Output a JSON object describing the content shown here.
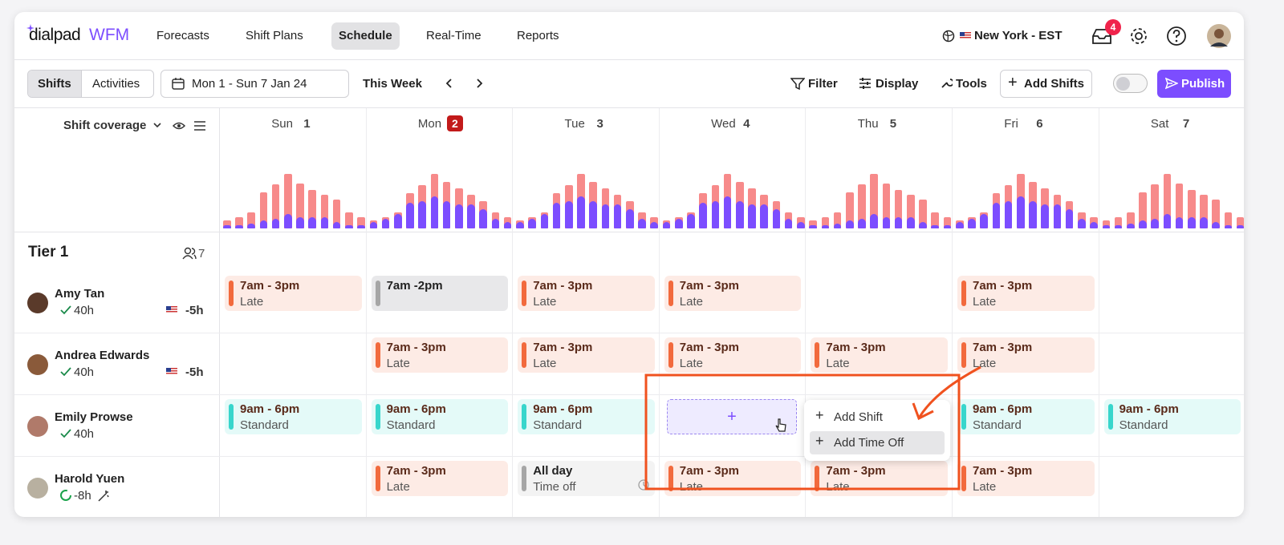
{
  "nav": {
    "brand": "dialpad",
    "product": "WFM",
    "links": [
      "Forecasts",
      "Shift Plans",
      "Schedule",
      "Real-Time",
      "Reports"
    ],
    "active": "Schedule",
    "location": "New York - EST",
    "inbox_count": 4
  },
  "toolbar": {
    "tabs": [
      "Shifts",
      "Activities"
    ],
    "date_range": "Mon 1 - Sun 7 Jan 24",
    "this_week": "This Week",
    "actions": [
      "Filter",
      "Display",
      "Tools"
    ],
    "add_button": "Add Shifts",
    "publish": "Publish"
  },
  "coverage": {
    "label": "Shift coverage",
    "days": [
      {
        "name": "Sun",
        "date": 1,
        "required": [
          10,
          14,
          20,
          45,
          55,
          68,
          56,
          48,
          42,
          36,
          20,
          14
        ],
        "scheduled": [
          4,
          4,
          6,
          10,
          12,
          18,
          14,
          14,
          14,
          8,
          4,
          4
        ]
      },
      {
        "name": "Mon",
        "date": 2,
        "today": true,
        "required": [
          10,
          14,
          20,
          44,
          54,
          68,
          58,
          50,
          42,
          34,
          20,
          14
        ],
        "scheduled": [
          8,
          12,
          18,
          32,
          34,
          40,
          34,
          30,
          30,
          24,
          12,
          8
        ]
      },
      {
        "name": "Tue",
        "date": 3,
        "required": [
          10,
          14,
          20,
          44,
          54,
          68,
          58,
          50,
          42,
          34,
          20,
          14
        ],
        "scheduled": [
          8,
          12,
          18,
          32,
          34,
          40,
          34,
          30,
          30,
          24,
          12,
          8
        ]
      },
      {
        "name": "Wed",
        "date": 4,
        "required": [
          10,
          14,
          20,
          44,
          54,
          68,
          58,
          50,
          42,
          34,
          20,
          14
        ],
        "scheduled": [
          8,
          12,
          18,
          32,
          34,
          40,
          34,
          30,
          30,
          24,
          12,
          8
        ]
      },
      {
        "name": "Thu",
        "date": 5,
        "required": [
          10,
          14,
          20,
          45,
          55,
          68,
          56,
          48,
          42,
          36,
          20,
          14
        ],
        "scheduled": [
          4,
          4,
          6,
          10,
          12,
          18,
          14,
          14,
          14,
          8,
          4,
          4
        ]
      },
      {
        "name": "Fri",
        "date": 6,
        "required": [
          10,
          14,
          20,
          44,
          54,
          68,
          58,
          50,
          42,
          34,
          20,
          14
        ],
        "scheduled": [
          8,
          12,
          18,
          32,
          34,
          40,
          34,
          30,
          30,
          24,
          12,
          8
        ]
      },
      {
        "name": "Sat",
        "date": 7,
        "required": [
          10,
          14,
          20,
          45,
          55,
          68,
          56,
          48,
          42,
          36,
          20,
          14
        ],
        "scheduled": [
          4,
          4,
          6,
          10,
          12,
          18,
          14,
          14,
          14,
          8,
          4,
          4
        ]
      }
    ],
    "required_color": "#f78a8a",
    "scheduled_color": "#7c4dff"
  },
  "group": {
    "name": "Tier 1",
    "count": 7
  },
  "people": [
    {
      "name": "Amy Tan",
      "hours": "40h",
      "offset": "-5h",
      "shifts": [
        {
          "time": "7am - 3pm",
          "label": "Late",
          "color": "#f26a3d"
        },
        {
          "time": "7am -2pm",
          "color": "#a6a6a6"
        },
        {
          "time": "7am - 3pm",
          "label": "Late",
          "color": "#f26a3d"
        },
        {
          "time": "7am - 3pm",
          "label": "Late",
          "color": "#f26a3d"
        },
        null,
        {
          "time": "7am - 3pm",
          "label": "Late",
          "color": "#f26a3d"
        },
        null
      ]
    },
    {
      "name": "Andrea Edwards",
      "hours": "40h",
      "offset": "-5h",
      "shifts": [
        null,
        {
          "time": "7am - 3pm",
          "label": "Late",
          "color": "#f26a3d"
        },
        {
          "time": "7am - 3pm",
          "label": "Late",
          "color": "#f26a3d"
        },
        {
          "time": "7am - 3pm",
          "label": "Late",
          "color": "#f26a3d"
        },
        {
          "time": "7am - 3pm",
          "label": "Late",
          "color": "#f26a3d"
        },
        {
          "time": "7am - 3pm",
          "label": "Late",
          "color": "#f26a3d"
        },
        null
      ]
    },
    {
      "name": "Emily Prowse",
      "hours": "40h",
      "shifts": [
        {
          "time": "9am - 6pm",
          "label": "Standard",
          "color": "#38d6cc"
        },
        {
          "time": "9am - 6pm",
          "label": "Standard",
          "color": "#38d6cc"
        },
        {
          "time": "9am - 6pm",
          "label": "Standard",
          "color": "#38d6cc"
        },
        null,
        null,
        {
          "time": "9am - 6pm",
          "label": "Standard",
          "color": "#38d6cc"
        },
        {
          "time": "9am - 6pm",
          "label": "Standard",
          "color": "#38d6cc"
        }
      ]
    },
    {
      "name": "Harold Yuen",
      "hours": "-8h",
      "shifts": [
        null,
        {
          "time": "7am - 3pm",
          "label": "Late",
          "color": "#f26a3d"
        },
        {
          "time": "All day",
          "label": "Time off",
          "color": "#a6a6a6"
        },
        {
          "time": "7am - 3pm",
          "label": "Late",
          "color": "#f26a3d"
        },
        {
          "time": "7am - 3pm",
          "label": "Late",
          "color": "#f26a3d"
        },
        {
          "time": "7am - 3pm",
          "label": "Late",
          "color": "#f26a3d"
        },
        null
      ]
    }
  ],
  "menu": [
    "Add Shift",
    "Add Time Off"
  ]
}
